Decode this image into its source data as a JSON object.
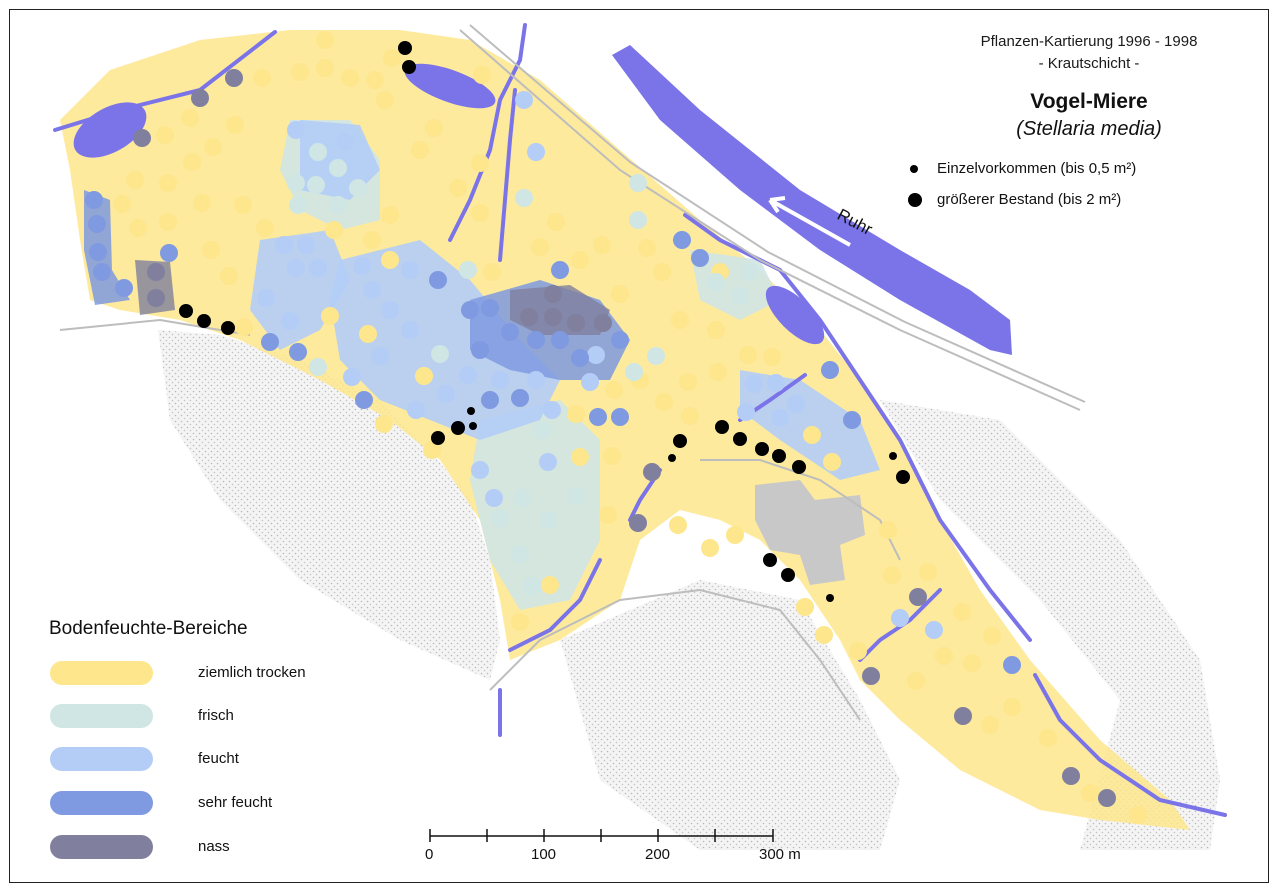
{
  "title": {
    "line1": "Pflanzen-Kartierung 1996 - 1998",
    "line2": "- Krautschicht -",
    "species_common": "Vogel-Miere",
    "species_latin": "(Stellaria media)"
  },
  "occurrence_legend": [
    {
      "label": "Einzelvorkommen (bis 0,5 m²)",
      "marker": "small-black-dot"
    },
    {
      "label": "größerer Bestand (bis 2 m²)",
      "marker": "large-black-dot"
    }
  ],
  "river_label": "Ruhr",
  "moisture_legend": {
    "title": "Bodenfeuchte-Bereiche",
    "items": [
      {
        "label": "ziemlich trocken",
        "color": "#fde68c"
      },
      {
        "label": "frisch",
        "color": "#cfe6e5"
      },
      {
        "label": "feucht",
        "color": "#b3cdf7"
      },
      {
        "label": "sehr feucht",
        "color": "#7f9ae0"
      },
      {
        "label": "nass",
        "color": "#807f9e"
      }
    ]
  },
  "scale_bar": {
    "labels": [
      "0",
      "100",
      "200",
      "300 m"
    ]
  },
  "colors": {
    "water": "#7b74e8",
    "dry": "#fde68c",
    "fresh": "#cfe6e5",
    "moist": "#b3cdf7",
    "very_moist": "#7f9ae0",
    "wet": "#807f9e",
    "building": "#c8c8c8",
    "stipple": "#d6d6d6"
  }
}
